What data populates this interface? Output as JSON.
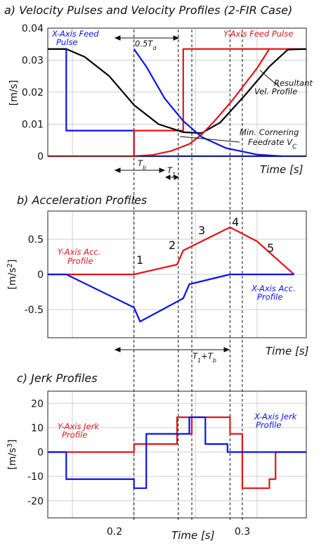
{
  "colors": {
    "x_axis": "#0a14e6",
    "y_axis": "#e0161b",
    "resultant": "#000000",
    "grid": "#cfcfcf"
  },
  "x_ticks": [
    "0.2",
    "0.3"
  ],
  "x_axis_label": "Time [s]",
  "chart_data": [
    {
      "type": "line",
      "title": "a) Velocity Pulses and Velocity Profiles (2-FIR Case)",
      "xlabel": "Time [s]",
      "ylabel": "[m/s]",
      "ylim": [
        0,
        0.04
      ],
      "yticks": [
        0,
        0.01,
        0.02,
        0.03,
        0.04
      ],
      "ytick_labels": [
        "0",
        "0.01",
        "0.02",
        "0.03",
        "0.04"
      ],
      "grid": true,
      "series": [
        {
          "name": "X-Axis Feed Pulse",
          "color": "#0a14e6",
          "x": [
            0.13,
            0.145,
            0.145,
            0.2,
            0.2,
            0.34
          ],
          "y": [
            0.0335,
            0.0335,
            0.008,
            0.008,
            0,
            0
          ]
        },
        {
          "name": "Y-Axis Feed Pulse",
          "color": "#e0161b",
          "x": [
            0.13,
            0.2,
            0.2,
            0.24,
            0.24,
            0.34
          ],
          "y": [
            0,
            0,
            0.008,
            0.008,
            0.0335,
            0.0335
          ]
        },
        {
          "name": "Resultant Vel. Profile",
          "color": "#000000",
          "x": [
            0.13,
            0.145,
            0.16,
            0.18,
            0.2,
            0.22,
            0.24,
            0.255,
            0.27,
            0.29,
            0.31,
            0.325,
            0.34
          ],
          "y": [
            0.0335,
            0.0335,
            0.031,
            0.025,
            0.016,
            0.01,
            0.0075,
            0.0072,
            0.0105,
            0.019,
            0.028,
            0.0333,
            0.0335
          ]
        },
        {
          "name": "",
          "color": "#e0161b",
          "x": [
            0.2,
            0.215,
            0.23,
            0.245,
            0.255,
            0.265,
            0.28,
            0.3,
            0.31
          ],
          "y": [
            0,
            0.0004,
            0.0016,
            0.0038,
            0.0068,
            0.0108,
            0.0175,
            0.0275,
            0.0335
          ]
        },
        {
          "name": "",
          "color": "#0a14e6",
          "x": [
            0.2,
            0.21,
            0.225,
            0.24,
            0.255,
            0.275,
            0.3,
            0.32
          ],
          "y": [
            0.0335,
            0.028,
            0.018,
            0.011,
            0.006,
            0.0025,
            0.0005,
            0
          ]
        }
      ],
      "annotations": [
        {
          "text": "X-Axis Feed",
          "color": "#0a14e6"
        },
        {
          "text": "Pulse",
          "color": "#0a14e6"
        },
        {
          "text": "Y-Axis Feed Pulse",
          "color": "#e0161b"
        },
        {
          "text": "Resultant",
          "color": "#111111"
        },
        {
          "text": "Vel. Profile",
          "color": "#111111"
        },
        {
          "text": "Min. Cornering",
          "color": "#111111"
        },
        {
          "text": "Feedrate V",
          "color": "#111111"
        },
        {
          "text": "C",
          "color": "#111111"
        },
        {
          "text": "0.5T",
          "color": "#111111"
        },
        {
          "text": "d",
          "color": "#111111"
        },
        {
          "text": "T",
          "color": "#111111"
        },
        {
          "text": "b",
          "color": "#111111"
        },
        {
          "text": "T",
          "color": "#111111"
        },
        {
          "text": "1",
          "color": "#111111"
        }
      ]
    },
    {
      "type": "line",
      "title": "b) Acceleration Profiles",
      "xlabel": "Time [s]",
      "ylabel": "[m/s2]",
      "ylim": [
        -0.9,
        0.9
      ],
      "yticks": [
        -0.5,
        0,
        0.5
      ],
      "ytick_labels": [
        "-0.5",
        "0",
        "0.5"
      ],
      "grid": true,
      "series": [
        {
          "name": "Y-Axis Acc. Profile",
          "color": "#e0161b",
          "x": [
            0.13,
            0.2,
            0.235,
            0.24,
            0.278,
            0.3,
            0.33
          ],
          "y": [
            0,
            0,
            0.14,
            0.34,
            0.67,
            0.47,
            0
          ]
        },
        {
          "name": "X-Axis Acc. Profile",
          "color": "#0a14e6",
          "x": [
            0.13,
            0.145,
            0.2,
            0.205,
            0.24,
            0.245,
            0.278,
            0.3,
            0.33
          ],
          "y": [
            0,
            0,
            -0.47,
            -0.67,
            -0.34,
            -0.14,
            0,
            0,
            0
          ]
        }
      ],
      "annotations": [
        {
          "text": "Y-Axis Acc.",
          "color": "#e0161b"
        },
        {
          "text": "Profile",
          "color": "#e0161b"
        },
        {
          "text": "X-Axis Acc.",
          "color": "#0a14e6"
        },
        {
          "text": "Profile",
          "color": "#0a14e6"
        },
        {
          "text": "1",
          "color": "#111111"
        },
        {
          "text": "2",
          "color": "#111111"
        },
        {
          "text": "3",
          "color": "#111111"
        },
        {
          "text": "4",
          "color": "#111111"
        },
        {
          "text": "5",
          "color": "#111111"
        },
        {
          "text": "T",
          "color": "#111111"
        },
        {
          "text": "1",
          "color": "#111111"
        },
        {
          "text": "+T",
          "color": "#111111"
        },
        {
          "text": "b",
          "color": "#111111"
        }
      ]
    },
    {
      "type": "line",
      "title": "c) Jerk Profiles",
      "xlabel": "Time [s]",
      "ylabel": "[m/s3]",
      "ylim": [
        -27,
        25
      ],
      "yticks": [
        -20,
        -10,
        0,
        10,
        20
      ],
      "ytick_labels": [
        "-20",
        "-10",
        "0",
        "10",
        "20"
      ],
      "grid": true,
      "series": [
        {
          "name": "Y-Axis Jerk Profile",
          "color": "#e0161b",
          "x": [
            0.13,
            0.2,
            0.2,
            0.235,
            0.235,
            0.245,
            0.245,
            0.247,
            0.247,
            0.278,
            0.278,
            0.288,
            0.288,
            0.31,
            0.31,
            0.315,
            0.315,
            0.34
          ],
          "y": [
            0,
            0,
            3.3,
            3.3,
            14.3,
            14.3,
            7.5,
            7.5,
            14.3,
            14.3,
            7.5,
            7.5,
            -14.8,
            -14.8,
            -11.1,
            -11.1,
            0,
            0
          ]
        },
        {
          "name": "X-Axis Jerk Profile",
          "color": "#0a14e6",
          "x": [
            0.13,
            0.145,
            0.145,
            0.2,
            0.2,
            0.21,
            0.21,
            0.245,
            0.245,
            0.258,
            0.258,
            0.276,
            0.276,
            0.3,
            0.3,
            0.34
          ],
          "y": [
            0,
            0,
            -11.1,
            -11.1,
            -14.8,
            -14.8,
            7.5,
            7.5,
            14.3,
            14.3,
            3.3,
            3.3,
            0,
            0,
            0,
            0
          ]
        }
      ],
      "annotations": [
        {
          "text": "Y-Axis Jerk",
          "color": "#e0161b"
        },
        {
          "text": "Profile",
          "color": "#e0161b"
        },
        {
          "text": "X-Axis Jerk",
          "color": "#0a14e6"
        },
        {
          "text": "Profile",
          "color": "#0a14e6"
        }
      ]
    }
  ]
}
